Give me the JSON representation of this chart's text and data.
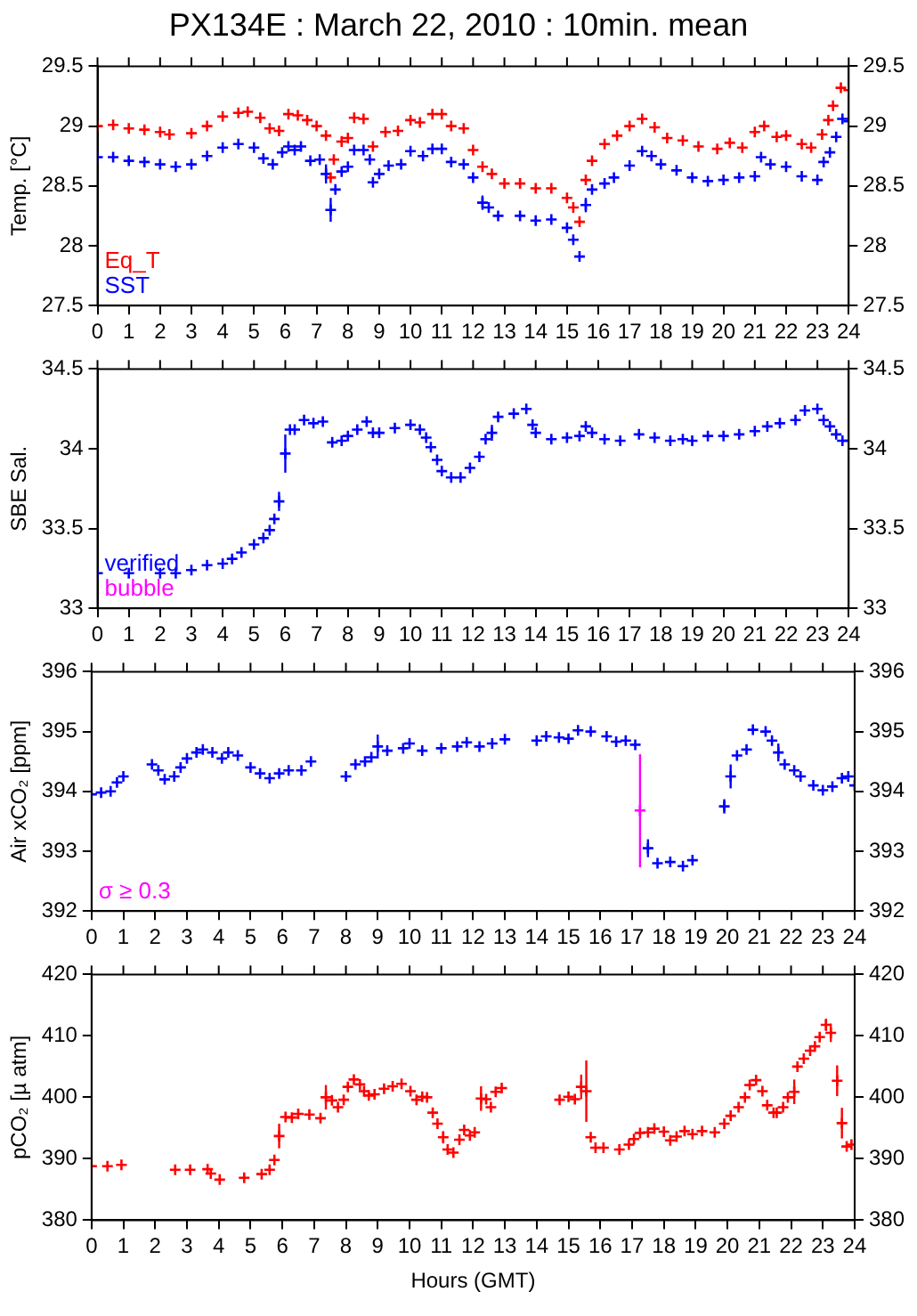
{
  "chart_data": [
    {
      "type": "scatter",
      "title": "PX134E : March 22, 2010 : 10min. mean",
      "ylabel": "Temp. [°C]",
      "marker": "cross",
      "legend": "bottom left",
      "xlim": [
        0,
        24
      ],
      "xticks": [
        0,
        1,
        2,
        3,
        4,
        5,
        6,
        7,
        8,
        9,
        10,
        11,
        12,
        13,
        14,
        15,
        16,
        17,
        18,
        19,
        20,
        21,
        22,
        23,
        24
      ],
      "ylim": [
        27.5,
        29.5
      ],
      "yticks": [
        27.5,
        28,
        28.5,
        29,
        29.5
      ],
      "y2lim": [
        27.5,
        29.5
      ],
      "y2ticks": [
        27.5,
        28,
        28.5,
        29,
        29.5
      ],
      "series": [
        {
          "name": "Eq_T",
          "color": "#ff0000",
          "x": [
            0,
            0.5,
            1,
            1.5,
            2,
            2.3,
            3,
            3.5,
            4,
            4.5,
            4.8,
            5.2,
            5.5,
            5.8,
            6.1,
            6.4,
            6.7,
            7,
            7.3,
            7.45,
            7.55,
            7.8,
            8,
            8.2,
            8.5,
            8.8,
            9.2,
            9.6,
            10,
            10.3,
            10.7,
            11,
            11.3,
            11.7,
            12,
            12.3,
            12.6,
            13,
            13.5,
            14,
            14.5,
            15,
            15.2,
            15.4,
            15.6,
            15.8,
            16.2,
            16.6,
            17,
            17.4,
            17.8,
            18.2,
            18.7,
            19.2,
            19.8,
            20.2,
            20.6,
            21,
            21.3,
            21.7,
            22,
            22.5,
            22.8,
            23.15,
            23.35,
            23.5,
            23.75,
            24
          ],
          "values": [
            29.0,
            29.01,
            28.98,
            28.97,
            28.95,
            28.93,
            28.94,
            29.0,
            29.08,
            29.11,
            29.12,
            29.07,
            28.98,
            28.96,
            29.1,
            29.09,
            29.05,
            29.0,
            28.92,
            28.57,
            28.72,
            28.87,
            28.9,
            29.07,
            29.06,
            28.83,
            28.95,
            28.96,
            29.05,
            29.03,
            29.1,
            29.1,
            29.0,
            28.98,
            28.8,
            28.66,
            28.6,
            28.52,
            28.52,
            28.48,
            28.48,
            28.4,
            28.32,
            28.2,
            28.55,
            28.71,
            28.85,
            28.92,
            29.0,
            29.06,
            28.99,
            28.9,
            28.88,
            28.83,
            28.81,
            28.86,
            28.82,
            28.95,
            29.0,
            28.91,
            28.92,
            28.85,
            28.82,
            28.93,
            29.05,
            29.17,
            29.32,
            29.3
          ]
        },
        {
          "name": "SST",
          "color": "#0000ff",
          "x": [
            0,
            0.5,
            1,
            1.5,
            2,
            2.5,
            3,
            3.5,
            4,
            4.5,
            5,
            5.3,
            5.6,
            5.9,
            6.1,
            6.3,
            6.5,
            6.8,
            7.1,
            7.3,
            7.45,
            7.6,
            7.8,
            8,
            8.2,
            8.5,
            8.7,
            8.8,
            9,
            9.3,
            9.7,
            10,
            10.4,
            10.7,
            11,
            11.3,
            11.7,
            12,
            12.3,
            12.5,
            12.8,
            13.5,
            14,
            14.5,
            15,
            15.2,
            15.4,
            15.6,
            15.8,
            16.2,
            16.5,
            17,
            17.4,
            17.7,
            18,
            18.5,
            19,
            19.5,
            20,
            20.5,
            21,
            21.2,
            21.5,
            22,
            22.5,
            23,
            23.2,
            23.4,
            23.6,
            23.8,
            24
          ],
          "values": [
            28.74,
            28.74,
            28.71,
            28.7,
            28.68,
            28.66,
            28.68,
            28.75,
            28.82,
            28.85,
            28.82,
            28.73,
            28.68,
            28.78,
            28.83,
            28.8,
            28.83,
            28.71,
            28.72,
            28.6,
            28.3,
            28.47,
            28.62,
            28.66,
            28.8,
            28.8,
            28.72,
            28.53,
            28.6,
            28.67,
            28.68,
            28.79,
            28.75,
            28.81,
            28.81,
            28.7,
            28.68,
            28.57,
            28.36,
            28.32,
            28.25,
            28.25,
            28.21,
            28.22,
            28.15,
            28.05,
            27.91,
            28.34,
            28.47,
            28.52,
            28.57,
            28.67,
            28.79,
            28.75,
            28.68,
            28.63,
            28.57,
            28.54,
            28.55,
            28.57,
            28.58,
            28.74,
            28.68,
            28.66,
            28.58,
            28.55,
            28.7,
            28.78,
            28.91,
            29.06,
            29.04
          ],
          "errors": [
            null,
            null,
            null,
            null,
            null,
            null,
            null,
            null,
            null,
            null,
            null,
            null,
            null,
            null,
            null,
            null,
            null,
            null,
            null,
            0.08,
            0.1,
            null,
            null,
            null,
            null,
            null,
            null,
            null,
            null,
            null,
            null,
            null,
            null,
            null,
            null,
            null,
            null,
            null,
            0.06,
            null,
            null,
            null,
            null,
            null,
            null,
            null,
            null,
            0.06,
            null,
            null,
            null,
            null,
            null,
            null,
            null,
            null,
            null,
            null,
            null,
            null,
            null,
            null,
            null,
            null,
            null,
            null,
            null,
            null,
            null,
            null,
            null
          ]
        }
      ]
    },
    {
      "type": "scatter",
      "ylabel": "SBE Sal.",
      "marker": "cross",
      "legend": "bottom left",
      "xlim": [
        0,
        24
      ],
      "xticks": [
        0,
        1,
        2,
        3,
        4,
        5,
        6,
        7,
        8,
        9,
        10,
        11,
        12,
        13,
        14,
        15,
        16,
        17,
        18,
        19,
        20,
        21,
        22,
        23,
        24
      ],
      "ylim": [
        33,
        34.5
      ],
      "yticks": [
        33,
        33.5,
        34,
        34.5
      ],
      "y2lim": [
        33,
        34.5
      ],
      "y2ticks": [
        33,
        33.5,
        34,
        34.5
      ],
      "series": [
        {
          "name": "verified",
          "color": "#0000ff",
          "x": [
            0,
            1,
            2,
            2.5,
            3,
            3.5,
            4,
            4.3,
            4.6,
            5,
            5.3,
            5.5,
            5.65,
            5.8,
            6.0,
            6.15,
            6.3,
            6.6,
            6.9,
            7.2,
            7.5,
            7.8,
            8,
            8.3,
            8.6,
            8.8,
            9,
            9.5,
            10,
            10.3,
            10.5,
            10.65,
            10.85,
            11,
            11.3,
            11.6,
            11.9,
            12.2,
            12.4,
            12.6,
            12.8,
            13.3,
            13.7,
            13.9,
            14,
            14.5,
            15,
            15.4,
            15.6,
            15.8,
            16.2,
            16.7,
            17.3,
            17.8,
            18.3,
            18.7,
            19,
            19.5,
            20,
            20.5,
            21,
            21.4,
            21.8,
            22.3,
            22.6,
            23,
            23.2,
            23.4,
            23.6,
            23.8,
            24
          ],
          "values": [
            33.22,
            33.22,
            33.22,
            33.22,
            33.24,
            33.27,
            33.28,
            33.31,
            33.35,
            33.4,
            33.44,
            33.49,
            33.56,
            33.67,
            33.97,
            34.12,
            34.12,
            34.18,
            34.16,
            34.17,
            34.04,
            34.05,
            34.08,
            34.12,
            34.17,
            34.1,
            34.1,
            34.13,
            34.15,
            34.12,
            34.07,
            34.01,
            33.93,
            33.86,
            33.82,
            33.82,
            33.88,
            33.95,
            34.06,
            34.1,
            34.2,
            34.22,
            34.25,
            34.15,
            34.1,
            34.06,
            34.07,
            34.08,
            34.14,
            34.1,
            34.06,
            34.05,
            34.09,
            34.07,
            34.05,
            34.06,
            34.05,
            34.08,
            34.08,
            34.09,
            34.11,
            34.14,
            34.16,
            34.18,
            34.24,
            34.25,
            34.18,
            34.14,
            34.09,
            34.05,
            34.05
          ],
          "errors": [
            null,
            null,
            null,
            null,
            null,
            null,
            null,
            null,
            null,
            null,
            null,
            null,
            null,
            0.06,
            0.12,
            null,
            null,
            null,
            null,
            null,
            null,
            null,
            null,
            null,
            null,
            null,
            null,
            null,
            null,
            null,
            null,
            null,
            null,
            null,
            null,
            null,
            null,
            null,
            null,
            0.05,
            null,
            null,
            null,
            null,
            null,
            null,
            null,
            null,
            null,
            null,
            null,
            null,
            null,
            null,
            null,
            null,
            null,
            null,
            null,
            null,
            null,
            null,
            null,
            null,
            null,
            null,
            null,
            null,
            null,
            null,
            null
          ]
        },
        {
          "name": "bubble",
          "color": "#ff00ff"
        }
      ]
    },
    {
      "type": "scatter",
      "ylabel": "Air xCO₂ [ppm]",
      "marker": "cross",
      "legend": "bottom left",
      "xlim": [
        0,
        24
      ],
      "xticks": [
        0,
        1,
        2,
        3,
        4,
        5,
        6,
        7,
        8,
        9,
        10,
        11,
        12,
        13,
        14,
        15,
        16,
        17,
        18,
        19,
        20,
        21,
        22,
        23,
        24
      ],
      "ylim": [
        392,
        396
      ],
      "yticks": [
        392,
        393,
        394,
        395,
        396
      ],
      "y2lim": [
        392,
        396
      ],
      "y2ticks": [
        392,
        393,
        394,
        395,
        396
      ],
      "series": [
        {
          "color": "#0000ff",
          "x": [
            0,
            0.3,
            0.6,
            0.8,
            1.0,
            1.9,
            2.1,
            2.3,
            2.6,
            2.8,
            3.0,
            3.3,
            3.5,
            3.8,
            4.1,
            4.3,
            4.6,
            5.0,
            5.3,
            5.6,
            5.9,
            6.2,
            6.6,
            6.9,
            8.0,
            8.3,
            8.6,
            8.8,
            9.0,
            9.3,
            9.8,
            10.0,
            10.4,
            11.0,
            11.5,
            11.8,
            12.2,
            12.6,
            13.0,
            14.0,
            14.3,
            14.7,
            15.0,
            15.3,
            15.7,
            16.2,
            16.5,
            16.8,
            17.1,
            17.5,
            17.8,
            18.2,
            18.6,
            18.9,
            19.9,
            20.1,
            20.3,
            20.6,
            20.8,
            21.2,
            21.4,
            21.6,
            21.8,
            22.1,
            22.3,
            22.7,
            23.0,
            23.3,
            23.6,
            23.8,
            24
          ],
          "values": [
            393.95,
            393.98,
            394.0,
            394.15,
            394.25,
            394.45,
            394.35,
            394.2,
            394.25,
            394.4,
            394.55,
            394.65,
            394.7,
            394.65,
            394.55,
            394.65,
            394.6,
            394.4,
            394.3,
            394.22,
            394.3,
            394.35,
            394.35,
            394.5,
            394.25,
            394.45,
            394.5,
            394.57,
            394.75,
            394.68,
            394.72,
            394.8,
            394.68,
            394.72,
            394.75,
            394.82,
            394.75,
            394.8,
            394.87,
            394.85,
            394.92,
            394.9,
            394.88,
            395.02,
            395.0,
            394.92,
            394.83,
            394.85,
            394.78,
            393.05,
            392.8,
            392.82,
            392.75,
            392.85,
            393.75,
            394.25,
            394.6,
            394.7,
            395.03,
            395.0,
            394.85,
            394.65,
            394.45,
            394.35,
            394.25,
            394.1,
            394.02,
            394.08,
            394.22,
            394.25,
            394.1
          ],
          "errors": [
            null,
            null,
            null,
            null,
            null,
            null,
            null,
            null,
            null,
            null,
            null,
            null,
            null,
            null,
            null,
            null,
            null,
            null,
            null,
            null,
            null,
            null,
            null,
            null,
            null,
            null,
            null,
            null,
            0.2,
            null,
            null,
            null,
            null,
            null,
            null,
            null,
            null,
            null,
            null,
            null,
            null,
            null,
            null,
            null,
            null,
            null,
            null,
            null,
            null,
            0.15,
            null,
            null,
            null,
            null,
            0.12,
            0.2,
            null,
            null,
            null,
            null,
            null,
            0.15,
            null,
            null,
            null,
            null,
            null,
            null,
            null,
            null,
            null
          ]
        },
        {
          "name": "σ ≥ 0.3",
          "color": "#ff00ff",
          "x": [
            17.25
          ],
          "values": [
            393.68
          ],
          "errors": [
            [
              392.73,
              394.62
            ]
          ]
        }
      ]
    },
    {
      "type": "scatter",
      "ylabel": "pCO₂ [µ atm]",
      "xlabel": "Hours (GMT)",
      "marker": "cross",
      "xlim": [
        0,
        24
      ],
      "xticks": [
        0,
        1,
        2,
        3,
        4,
        5,
        6,
        7,
        8,
        9,
        10,
        11,
        12,
        13,
        14,
        15,
        16,
        17,
        18,
        19,
        20,
        21,
        22,
        23,
        24
      ],
      "ylim": [
        380,
        420
      ],
      "yticks": [
        380,
        390,
        400,
        410,
        420
      ],
      "y2lim": [
        380,
        420
      ],
      "y2ticks": [
        380,
        390,
        400,
        410,
        420
      ],
      "series": [
        {
          "color": "#ff0000",
          "x": [
            0,
            0.5,
            0.94,
            2.63,
            3.1,
            3.65,
            3.75,
            4.03,
            4.8,
            5.35,
            5.6,
            5.75,
            5.9,
            6.1,
            6.3,
            6.5,
            6.85,
            7.2,
            7.37,
            7.56,
            7.75,
            7.93,
            8.06,
            8.25,
            8.44,
            8.57,
            8.72,
            8.9,
            9.2,
            9.47,
            9.75,
            10.03,
            10.22,
            10.4,
            10.55,
            10.73,
            10.88,
            11.06,
            11.2,
            11.38,
            11.57,
            11.72,
            11.9,
            12.05,
            12.25,
            12.41,
            12.56,
            12.71,
            12.9,
            14.72,
            15.0,
            15.2,
            15.4,
            15.56,
            15.7,
            15.85,
            16.1,
            16.6,
            16.9,
            17.06,
            17.25,
            17.5,
            17.7,
            18.0,
            18.2,
            18.4,
            18.65,
            18.9,
            19.2,
            19.6,
            19.9,
            20.1,
            20.35,
            20.55,
            20.7,
            20.9,
            21.1,
            21.25,
            21.45,
            21.55,
            21.75,
            21.9,
            22.1,
            22.2,
            22.4,
            22.6,
            22.75,
            22.9,
            23.1,
            23.25,
            23.45,
            23.6,
            23.75,
            23.9
          ],
          "values": [
            388.8,
            388.8,
            389.0,
            388.2,
            388.2,
            388.3,
            387.6,
            386.6,
            386.9,
            387.5,
            388.2,
            389.8,
            393.7,
            396.8,
            396.7,
            397.3,
            397.2,
            396.6,
            400.0,
            399.5,
            398.4,
            399.6,
            401.7,
            402.9,
            402.1,
            401.0,
            400.3,
            400.5,
            401.4,
            401.8,
            402.2,
            401.0,
            399.6,
            400.1,
            400.0,
            397.5,
            395.7,
            393.5,
            391.5,
            391.0,
            393.1,
            394.7,
            393.8,
            394.3,
            399.8,
            399.7,
            398.4,
            400.9,
            401.5,
            399.6,
            400.1,
            399.7,
            401.7,
            401.0,
            393.5,
            391.8,
            391.8,
            391.5,
            392.3,
            393.2,
            394.2,
            394.3,
            394.9,
            394.4,
            393.0,
            393.6,
            394.5,
            394.0,
            394.5,
            394.3,
            395.7,
            397.0,
            398.4,
            400.0,
            402.0,
            402.8,
            401.0,
            398.7,
            397.5,
            397.5,
            398.4,
            400.0,
            400.9,
            405.0,
            406.3,
            407.6,
            408.3,
            409.8,
            411.8,
            410.5,
            402.7,
            395.8,
            392.0,
            392.3
          ],
          "errors": [
            null,
            null,
            null,
            null,
            null,
            null,
            null,
            null,
            null,
            null,
            null,
            null,
            2,
            null,
            null,
            null,
            null,
            null,
            2,
            null,
            null,
            null,
            null,
            null,
            null,
            null,
            null,
            null,
            null,
            null,
            null,
            null,
            null,
            null,
            null,
            null,
            null,
            1,
            null,
            null,
            null,
            null,
            null,
            null,
            2,
            null,
            null,
            null,
            null,
            null,
            null,
            null,
            2,
            5,
            null,
            null,
            null,
            null,
            null,
            null,
            null,
            null,
            null,
            null,
            null,
            null,
            null,
            null,
            null,
            null,
            null,
            null,
            null,
            null,
            null,
            null,
            null,
            null,
            null,
            null,
            null,
            null,
            2,
            null,
            null,
            null,
            null,
            null,
            1,
            1.5,
            2.5,
            2.5,
            null,
            null
          ]
        }
      ]
    }
  ]
}
